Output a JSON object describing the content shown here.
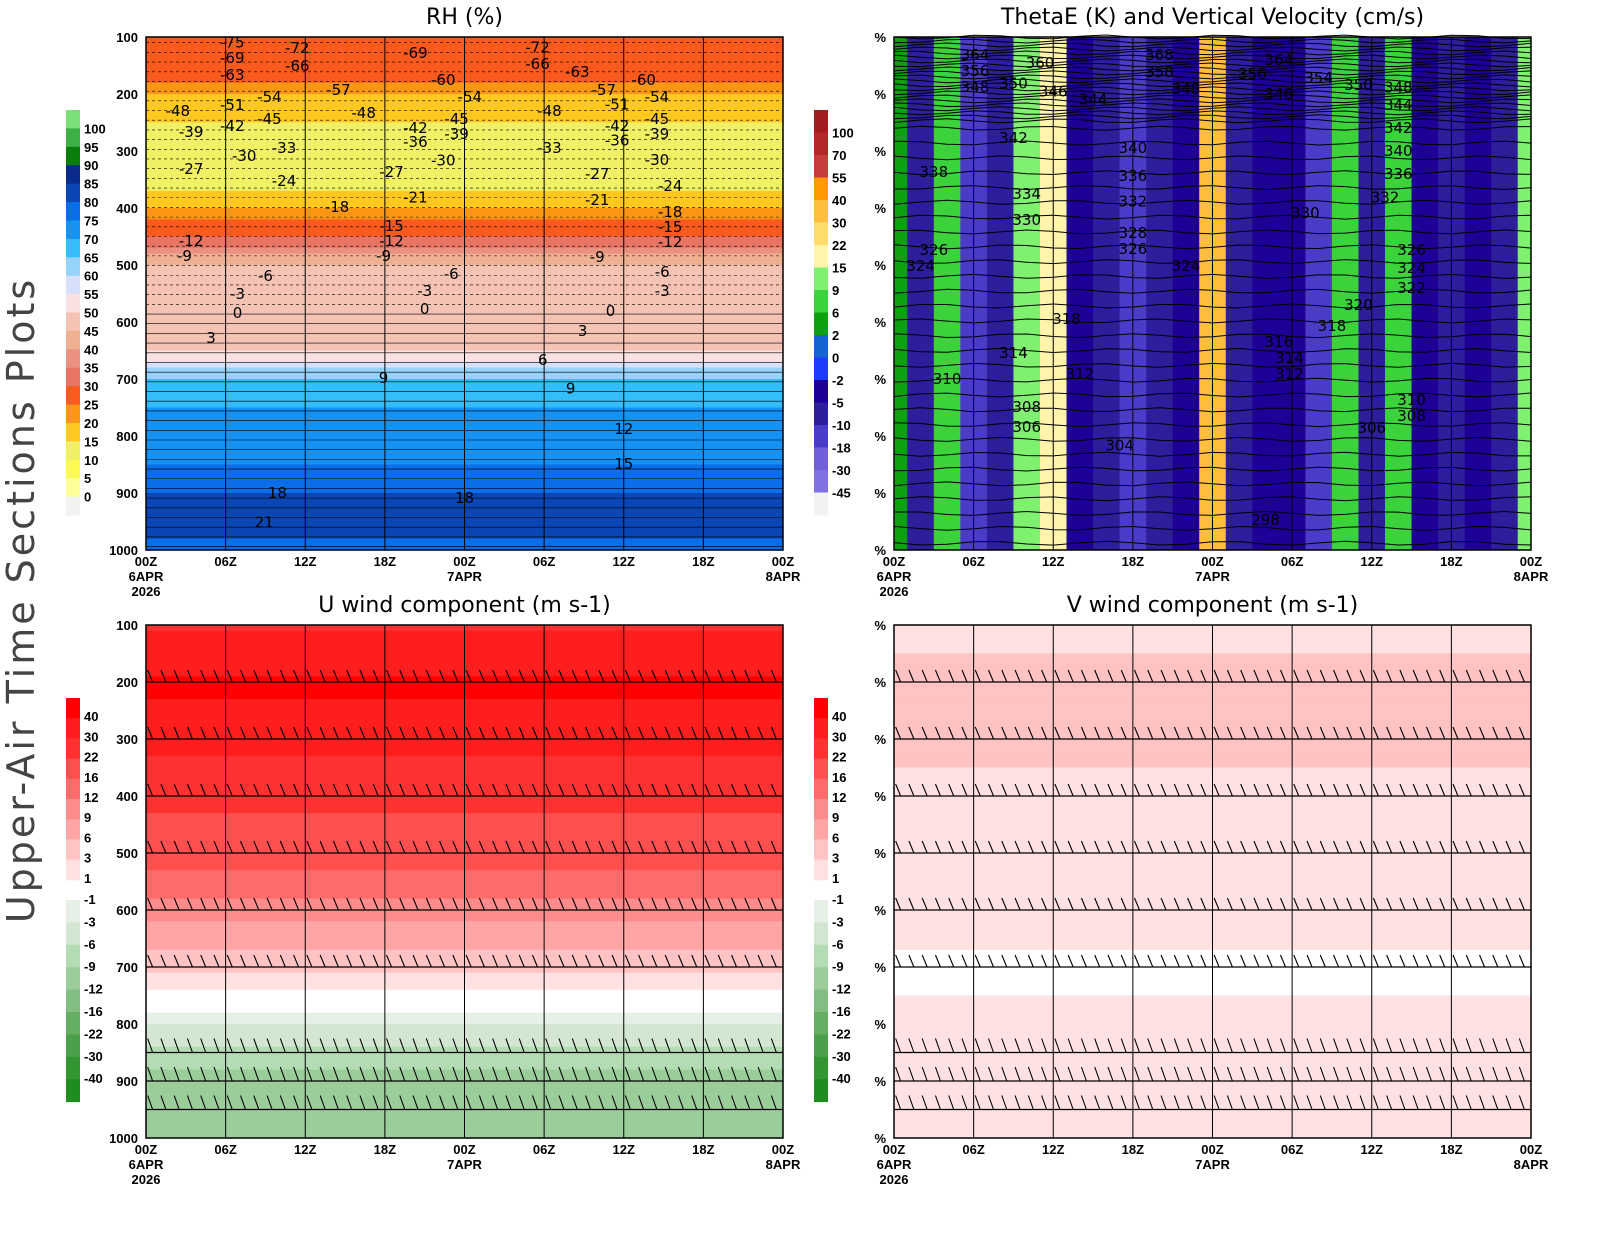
{
  "figure_title": "Upper-Air Time Sections Plots",
  "chart_data": [
    {
      "type": "heatmap",
      "title": "RH (%)",
      "y_ticks": [
        "100",
        "200",
        "300",
        "400",
        "500",
        "600",
        "700",
        "800",
        "900",
        "1000"
      ],
      "y_range_hpa": [
        100,
        1000
      ],
      "x_ticks": [
        "00Z",
        "06Z",
        "12Z",
        "18Z",
        "00Z",
        "06Z",
        "12Z",
        "18Z",
        "00Z"
      ],
      "x_dates": {
        "start": "6APR",
        "year": "2026",
        "mid": "7APR",
        "end": "8APR"
      },
      "colorbar": {
        "labels": [
          "100",
          "95",
          "90",
          "85",
          "80",
          "75",
          "70",
          "65",
          "60",
          "55",
          "50",
          "45",
          "40",
          "35",
          "30",
          "25",
          "20",
          "15",
          "10",
          "5",
          "0"
        ],
        "levels": [
          100,
          95,
          90,
          85,
          80,
          75,
          70,
          65,
          60,
          55,
          50,
          45,
          40,
          35,
          30,
          25,
          20,
          15,
          10,
          5,
          0
        ],
        "colors": [
          "#79e077",
          "#3cb043",
          "#0a7d0a",
          "#0a2a8c",
          "#0a46b4",
          "#0a6eeb",
          "#1492f5",
          "#32befa",
          "#96d2fa",
          "#d7e0fa",
          "#fae1e1",
          "#f5c3b4",
          "#efaf91",
          "#eb9182",
          "#e87564",
          "#fa5a1e",
          "#fa9614",
          "#ffc81e",
          "#f0f064",
          "#fafa50",
          "#ffff9a",
          "#f2f2f2"
        ]
      },
      "profile": {
        "pressure": [
          100,
          150,
          200,
          250,
          300,
          350,
          400,
          450,
          500,
          550,
          600,
          650,
          700,
          750,
          800,
          850,
          900,
          950,
          1000
        ],
        "value": [
          25,
          30,
          20,
          15,
          12,
          10,
          20,
          30,
          45,
          45,
          45,
          50,
          65,
          70,
          70,
          75,
          80,
          85,
          75
        ]
      },
      "contour_labels": [
        [
          "-75",
          6.5,
          110
        ],
        [
          "-72",
          11.4,
          119
        ],
        [
          "-69",
          6.5,
          137
        ],
        [
          "-66",
          11.4,
          151
        ],
        [
          "-63",
          6.5,
          167
        ],
        [
          "-69",
          20.3,
          128
        ],
        [
          "-72",
          29.5,
          118
        ],
        [
          "-66",
          29.5,
          147
        ],
        [
          "-63",
          32.5,
          161
        ],
        [
          "-60",
          22.4,
          175
        ],
        [
          "-60",
          37.5,
          175
        ],
        [
          "-57",
          14.5,
          193
        ],
        [
          "-57",
          34.5,
          193
        ],
        [
          "-54",
          9.3,
          205
        ],
        [
          "-54",
          24.4,
          205
        ],
        [
          "-54",
          38.5,
          205
        ],
        [
          "-51",
          6.5,
          219
        ],
        [
          "-51",
          35.5,
          218
        ],
        [
          "-48",
          2.4,
          230
        ],
        [
          "-48",
          16.4,
          233
        ],
        [
          "-48",
          30.4,
          230
        ],
        [
          "-45",
          9.3,
          244
        ],
        [
          "-45",
          23.4,
          244
        ],
        [
          "-45",
          38.5,
          244
        ],
        [
          "-42",
          6.5,
          256
        ],
        [
          "-42",
          20.3,
          260
        ],
        [
          "-42",
          35.5,
          256
        ],
        [
          "-39",
          3.4,
          267
        ],
        [
          "-39",
          23.4,
          270
        ],
        [
          "-39",
          38.5,
          270
        ],
        [
          "-36",
          20.3,
          284
        ],
        [
          "-36",
          35.5,
          282
        ],
        [
          "-33",
          10.4,
          295
        ],
        [
          "-33",
          30.4,
          295
        ],
        [
          "-30",
          7.4,
          309
        ],
        [
          "-30",
          22.4,
          317
        ],
        [
          "-30",
          38.5,
          316
        ],
        [
          "-27",
          3.4,
          332
        ],
        [
          "-27",
          18.5,
          337
        ],
        [
          "-27",
          34,
          340
        ],
        [
          "-24",
          10.4,
          353
        ],
        [
          "-24",
          39.5,
          361
        ],
        [
          "-21",
          20.3,
          382
        ],
        [
          "-21",
          34,
          386
        ],
        [
          "-18",
          14.4,
          398
        ],
        [
          "-18",
          39.5,
          407
        ],
        [
          "-15",
          18.5,
          432
        ],
        [
          "-15",
          39.5,
          433
        ],
        [
          "-12",
          3.4,
          458
        ],
        [
          "-12",
          18.5,
          458
        ],
        [
          "-12",
          39.5,
          460
        ],
        [
          "-9",
          2.9,
          484
        ],
        [
          "-9",
          17.9,
          484
        ],
        [
          "-9",
          34,
          486
        ],
        [
          "-6",
          9,
          519
        ],
        [
          "-6",
          23,
          516
        ],
        [
          "-6",
          38.9,
          512
        ],
        [
          "-3",
          6.9,
          551
        ],
        [
          "-3",
          21,
          546
        ],
        [
          "-3",
          38.9,
          546
        ],
        [
          "0",
          6.9,
          584
        ],
        [
          "0",
          21,
          577
        ],
        [
          "0",
          35,
          581
        ],
        [
          "3",
          4.9,
          628
        ],
        [
          "3",
          32.9,
          616
        ],
        [
          "6",
          29.9,
          667
        ],
        [
          "9",
          17.9,
          698
        ],
        [
          "9",
          32,
          717
        ],
        [
          "12",
          36,
          788
        ],
        [
          "15",
          36,
          849
        ],
        [
          "18",
          9.9,
          900
        ],
        [
          "18",
          24,
          909
        ],
        [
          "21",
          8.9,
          952
        ]
      ]
    },
    {
      "type": "heatmap",
      "title": "ThetaE (K) and Vertical Velocity (cm/s)",
      "y_ticks": [
        "%",
        "%",
        "%",
        "%",
        "%",
        "%",
        "%",
        "%",
        "%",
        "%"
      ],
      "x_ticks": [
        "00Z",
        "06Z",
        "12Z",
        "18Z",
        "00Z",
        "06Z",
        "12Z",
        "18Z",
        "00Z"
      ],
      "x_dates": {
        "start": "6APR",
        "year": "2026",
        "mid": "7APR",
        "end": "8APR"
      },
      "colorbar": {
        "labels": [
          "100",
          "70",
          "55",
          "40",
          "30",
          "22",
          "15",
          "9",
          "6",
          "2",
          "0",
          "-2",
          "-5",
          "-10",
          "-18",
          "-30",
          "-45"
        ],
        "levels": [
          100,
          70,
          55,
          40,
          30,
          22,
          15,
          9,
          6,
          2,
          0,
          -2,
          -5,
          -10,
          -18,
          -30,
          -45
        ],
        "colors": [
          "#a01e1e",
          "#b42828",
          "#c83c3c",
          "#ff9b00",
          "#ffbe3c",
          "#ffdc6e",
          "#fff5aa",
          "#80f070",
          "#3cd23c",
          "#0fa00f",
          "#1464d2",
          "#1e3cff",
          "#1e0096",
          "#2d1e9b",
          "#4b3cc8",
          "#7060dc",
          "#8070e6",
          "#f2f2f2"
        ]
      },
      "w_series": {
        "hours": [
          0,
          2,
          4,
          6,
          8,
          10,
          12,
          14,
          16,
          18,
          20,
          22,
          24,
          26,
          28,
          30,
          32,
          34,
          36,
          38,
          40,
          42,
          44,
          46,
          48
        ],
        "value": [
          2,
          -10,
          6,
          -18,
          -10,
          9,
          15,
          -5,
          -10,
          -18,
          -10,
          -5,
          30,
          -10,
          -5,
          -5,
          -18,
          6,
          -10,
          6,
          -5,
          -10,
          -5,
          -10,
          9
        ]
      },
      "contour_labels": [
        [
          "364",
          6.1,
          132
        ],
        [
          "356",
          6.1,
          160
        ],
        [
          "348",
          6.1,
          188
        ],
        [
          "350",
          9,
          182
        ],
        [
          "360",
          11,
          146
        ],
        [
          "346",
          12,
          196
        ],
        [
          "344",
          15,
          210
        ],
        [
          "368",
          20,
          132
        ],
        [
          "358",
          20,
          161
        ],
        [
          "348",
          22,
          191
        ],
        [
          "356",
          27,
          165
        ],
        [
          "364",
          29,
          140
        ],
        [
          "346",
          29,
          200
        ],
        [
          "354",
          32,
          172
        ],
        [
          "350",
          35,
          184
        ],
        [
          "348",
          38,
          189
        ],
        [
          "344",
          38,
          219
        ],
        [
          "342",
          38,
          260
        ],
        [
          "340",
          38,
          300
        ],
        [
          "336",
          38,
          340
        ],
        [
          "332",
          37,
          382
        ],
        [
          "330",
          31,
          409
        ],
        [
          "326",
          39,
          474
        ],
        [
          "324",
          39,
          505
        ],
        [
          "322",
          39,
          540
        ],
        [
          "320",
          35,
          570
        ],
        [
          "318",
          33,
          607
        ],
        [
          "316",
          29,
          635
        ],
        [
          "314",
          29.8,
          663
        ],
        [
          "312",
          29.8,
          691
        ],
        [
          "310",
          39,
          737
        ],
        [
          "308",
          39,
          765
        ],
        [
          "306",
          36,
          786
        ],
        [
          "342",
          9,
          277
        ],
        [
          "340",
          18,
          295
        ],
        [
          "338",
          3,
          337
        ],
        [
          "336",
          18,
          344
        ],
        [
          "334",
          10,
          375
        ],
        [
          "332",
          18,
          389
        ],
        [
          "330",
          10,
          421
        ],
        [
          "328",
          18,
          444
        ],
        [
          "326",
          18,
          472
        ],
        [
          "326",
          3,
          474
        ],
        [
          "324",
          2,
          502
        ],
        [
          "324",
          22,
          502
        ],
        [
          "318",
          13,
          595
        ],
        [
          "314",
          9,
          654
        ],
        [
          "312",
          14,
          691
        ],
        [
          "310",
          4,
          700
        ],
        [
          "308",
          10,
          749
        ],
        [
          "306",
          10,
          784
        ],
        [
          "304",
          17,
          817
        ],
        [
          "298",
          28,
          947
        ]
      ]
    },
    {
      "type": "heatmap",
      "title": "U wind component (m s-1)",
      "y_ticks": [
        "100",
        "200",
        "300",
        "400",
        "500",
        "600",
        "700",
        "800",
        "900",
        "1000"
      ],
      "x_ticks": [
        "00Z",
        "06Z",
        "12Z",
        "18Z",
        "00Z",
        "06Z",
        "12Z",
        "18Z",
        "00Z"
      ],
      "x_dates": {
        "start": "6APR",
        "year": "2026",
        "mid": "7APR",
        "end": "8APR"
      },
      "colorbar": {
        "labels": [
          "40",
          "30",
          "22",
          "16",
          "12",
          "9",
          "6",
          "3",
          "1",
          "-1",
          "-3",
          "-6",
          "-9",
          "-12",
          "-16",
          "-22",
          "-30",
          "-40"
        ],
        "levels": [
          40,
          30,
          22,
          16,
          12,
          9,
          6,
          3,
          1,
          -1,
          -3,
          -6,
          -9,
          -12,
          -16,
          -22,
          -30,
          -40
        ],
        "colors": [
          "#ff0000",
          "#ff1e1e",
          "#ff3232",
          "#ff5050",
          "#ff6a6a",
          "#ff8c8c",
          "#ffa5a5",
          "#ffc3c3",
          "#ffe1e1",
          "#ffffff",
          "#e6f0e6",
          "#d2e6d2",
          "#b4dcb4",
          "#9bcd9b",
          "#82be82",
          "#64af64",
          "#4ba04b",
          "#329632",
          "#1e8c1e"
        ]
      },
      "profile": {
        "pressure": [
          100,
          200,
          250,
          300,
          400,
          500,
          600,
          650,
          700,
          740,
          770,
          800,
          850,
          900,
          950,
          1000
        ],
        "value": [
          28,
          42,
          38,
          32,
          24,
          18,
          10,
          7,
          4,
          1,
          -0.5,
          -3,
          -7,
          -10,
          -12,
          -9
        ]
      },
      "wind_barb_levels": [
        200,
        300,
        400,
        500,
        600,
        700,
        850,
        900,
        950
      ]
    },
    {
      "type": "heatmap",
      "title": "V wind component (m s-1)",
      "y_ticks": [
        "%",
        "%",
        "%",
        "%",
        "%",
        "%",
        "%",
        "%",
        "%",
        "%"
      ],
      "x_ticks": [
        "00Z",
        "06Z",
        "12Z",
        "18Z",
        "00Z",
        "06Z",
        "12Z",
        "18Z",
        "00Z"
      ],
      "x_dates": {
        "start": "6APR",
        "year": "2026",
        "mid": "7APR",
        "end": "8APR"
      },
      "colorbar": {
        "labels": [
          "40",
          "30",
          "22",
          "16",
          "12",
          "9",
          "6",
          "3",
          "1",
          "-1",
          "-3",
          "-6",
          "-9",
          "-12",
          "-16",
          "-22",
          "-30",
          "-40"
        ],
        "levels": [
          40,
          30,
          22,
          16,
          12,
          9,
          6,
          3,
          1,
          -1,
          -3,
          -6,
          -9,
          -12,
          -16,
          -22,
          -30,
          -40
        ],
        "colors": [
          "#ff0000",
          "#ff1e1e",
          "#ff3232",
          "#ff5050",
          "#ff6a6a",
          "#ff8c8c",
          "#ffa5a5",
          "#ffc3c3",
          "#ffe1e1",
          "#ffffff",
          "#e6f0e6",
          "#d2e6d2",
          "#b4dcb4",
          "#9bcd9b",
          "#82be82",
          "#64af64",
          "#4ba04b",
          "#329632",
          "#1e8c1e"
        ]
      },
      "profile": {
        "pressure": [
          100,
          200,
          300,
          400,
          500,
          600,
          700,
          800,
          900,
          1000
        ],
        "value": [
          2,
          4,
          4,
          2,
          2,
          2,
          0.5,
          1.5,
          2,
          2
        ]
      },
      "wind_barb_levels": [
        200,
        300,
        400,
        500,
        600,
        700,
        850,
        900,
        950
      ]
    }
  ]
}
